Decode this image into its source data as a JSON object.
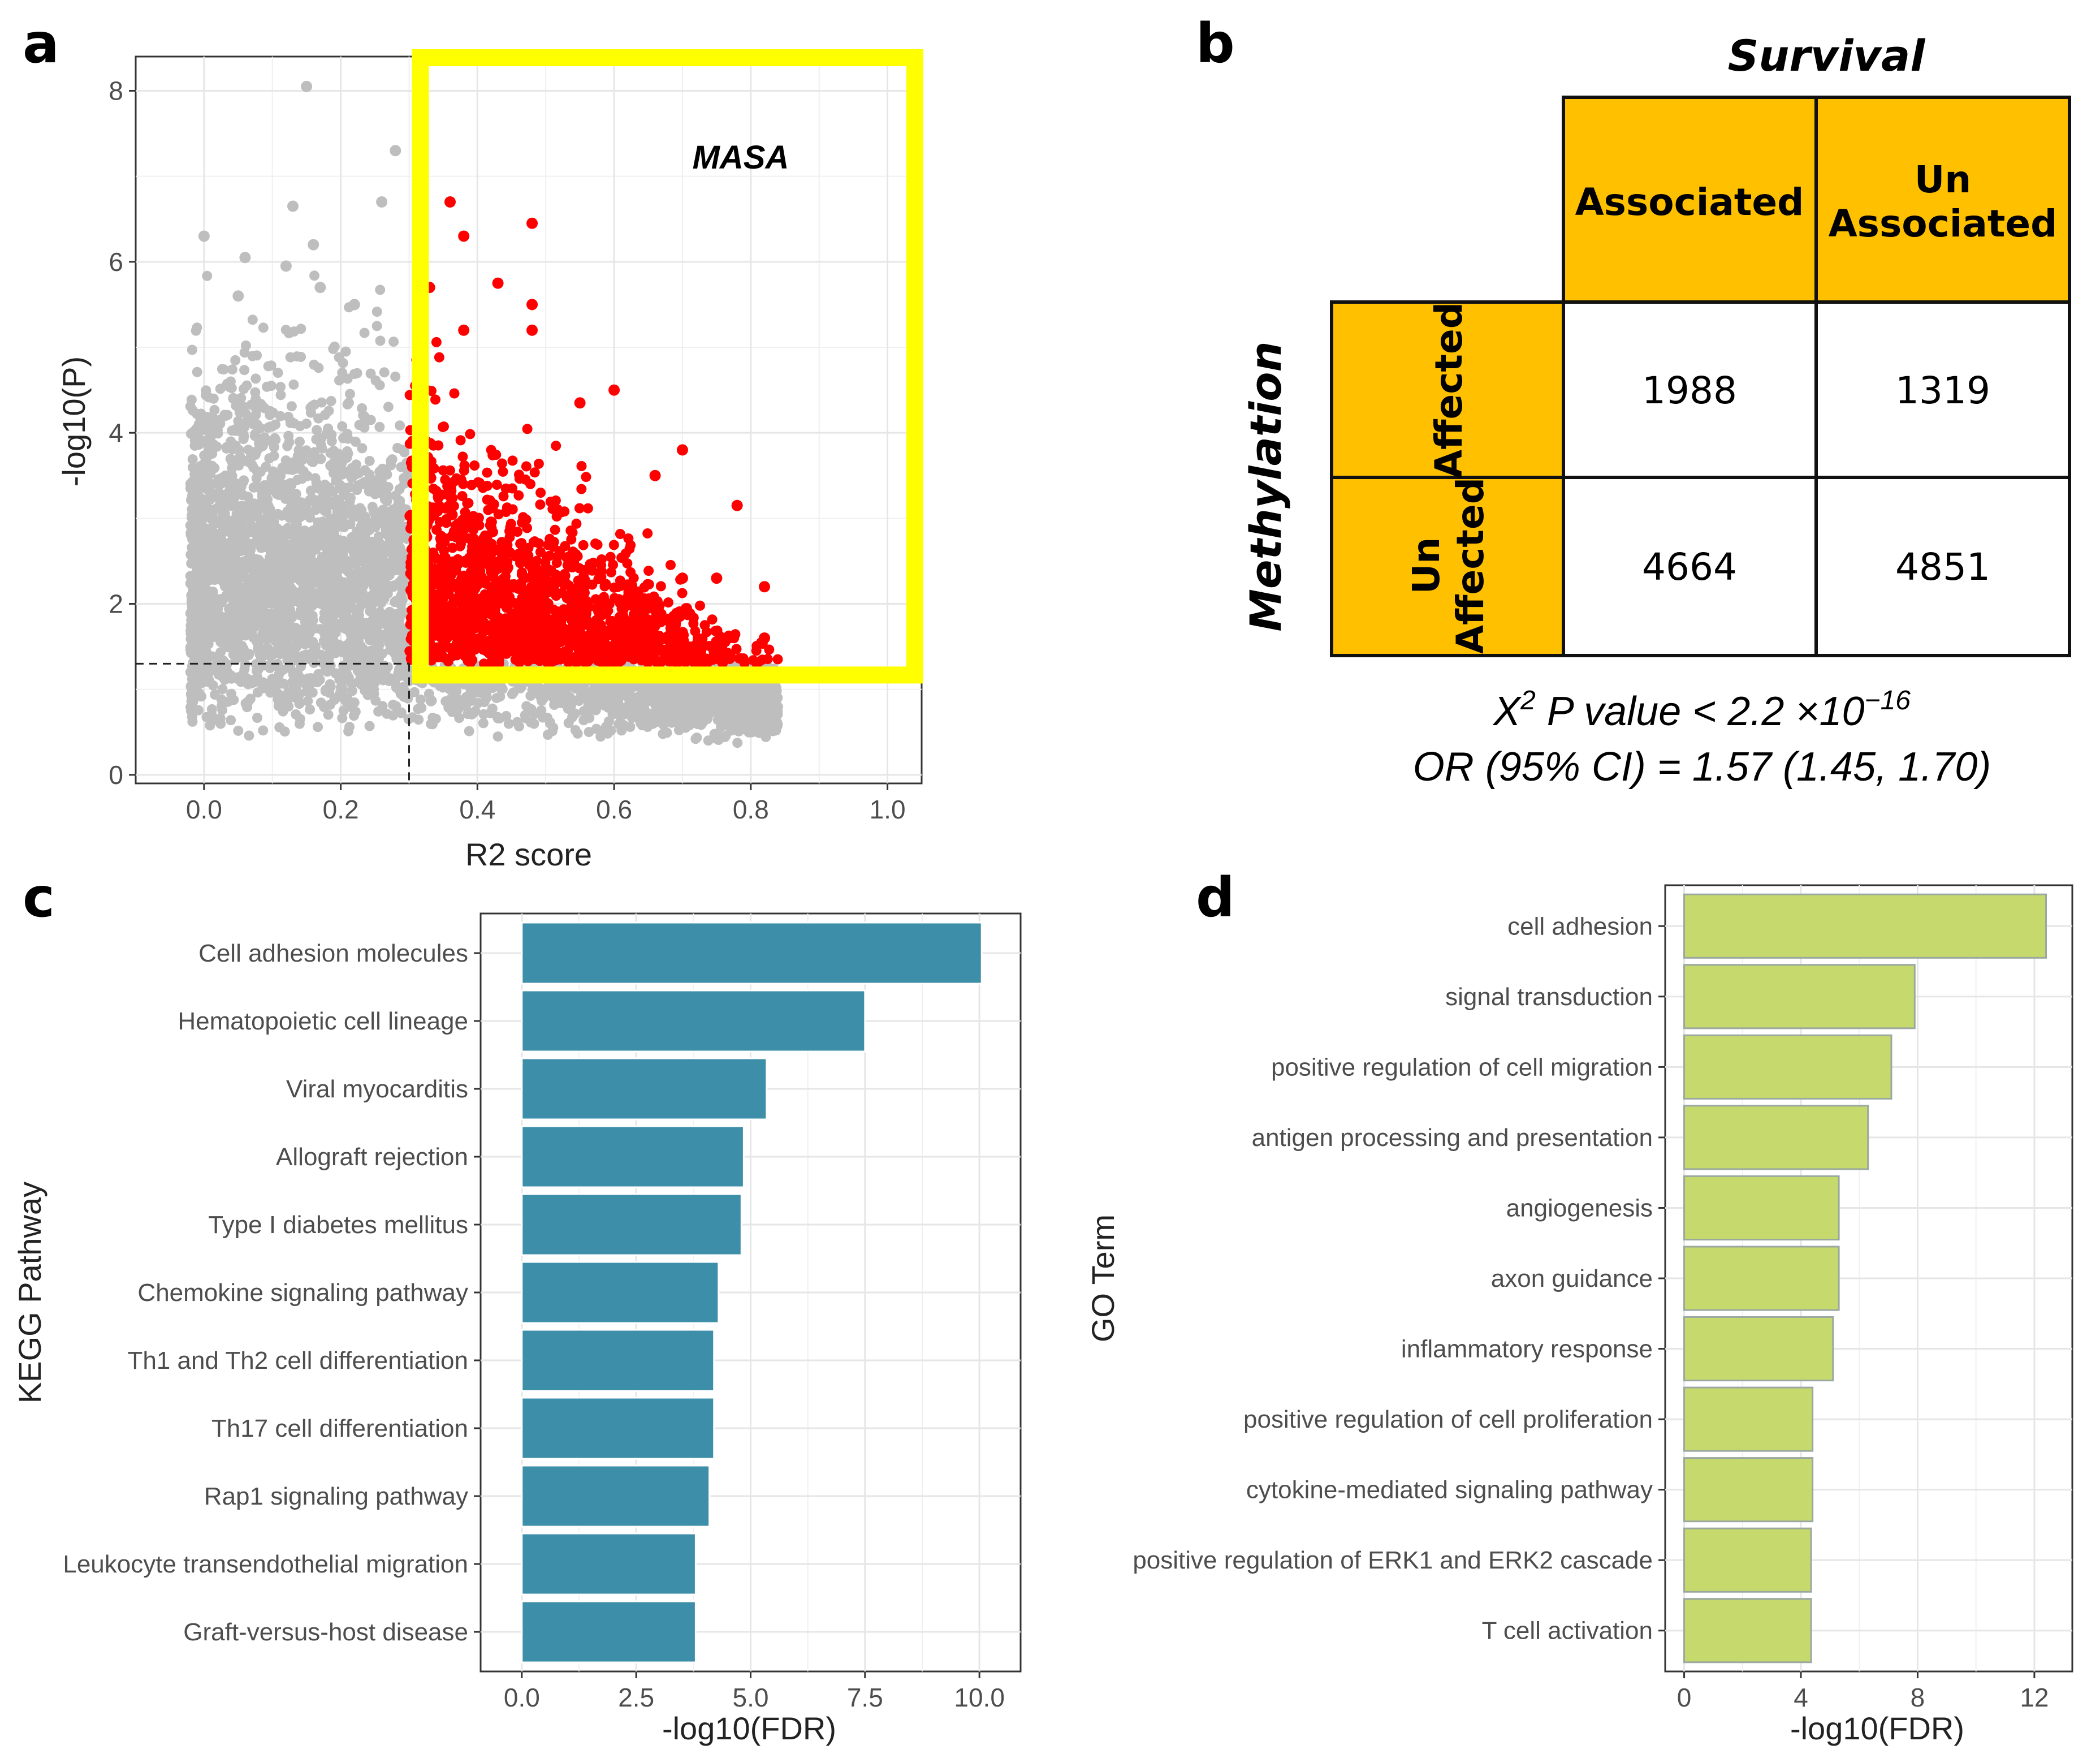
{
  "panels": {
    "a": "a",
    "b": "b",
    "c": "c",
    "d": "d"
  },
  "colors": {
    "grey_points": "#bebebe",
    "red_points": "#ff0000",
    "highlight_box": "#ffff00",
    "kegg_bar": "#3d8ea8",
    "go_bar": "#c6d96c",
    "table_orange": "#ffc000"
  },
  "chart_data": [
    {
      "id": "a",
      "type": "scatter",
      "title": "",
      "xlabel": "R2 score",
      "ylabel": "-log10(P)",
      "xlim": [
        -0.1,
        1.05
      ],
      "ylim": [
        -0.1,
        8.4
      ],
      "xticks": [
        0.0,
        0.2,
        0.4,
        0.6,
        0.8,
        1.0
      ],
      "xtick_labels": [
        "0.0",
        "0.2",
        "0.4",
        "0.6",
        "0.8",
        "1.0"
      ],
      "yticks": [
        0,
        2,
        4,
        6,
        8
      ],
      "ytick_labels": [
        "0",
        "2",
        "4",
        "6",
        "8"
      ],
      "thresholds": {
        "x": 0.3,
        "y": 1.3
      },
      "annotation": "MASA",
      "highlight_region": {
        "x_min": 0.3,
        "x_max": 1.05,
        "y_min": 1.3,
        "y_max": 8.4
      },
      "grid": true,
      "notable_points": [
        {
          "x": 0.15,
          "y": 8.05
        },
        {
          "x": 0.28,
          "y": 7.3
        },
        {
          "x": 0.13,
          "y": 6.65
        },
        {
          "x": 0.26,
          "y": 6.7
        },
        {
          "x": 0.0,
          "y": 6.3
        },
        {
          "x": 0.06,
          "y": 6.05
        },
        {
          "x": 0.12,
          "y": 5.95
        },
        {
          "x": 0.16,
          "y": 6.2
        },
        {
          "x": 0.05,
          "y": 5.6
        },
        {
          "x": 0.17,
          "y": 5.7
        },
        {
          "x": 0.22,
          "y": 5.5
        },
        {
          "x": 0.36,
          "y": 6.7
        },
        {
          "x": 0.38,
          "y": 6.3
        },
        {
          "x": 0.48,
          "y": 6.45
        },
        {
          "x": 0.43,
          "y": 5.75
        },
        {
          "x": 0.48,
          "y": 5.5
        },
        {
          "x": 0.48,
          "y": 5.2
        },
        {
          "x": 0.33,
          "y": 5.7
        },
        {
          "x": 0.38,
          "y": 5.2
        },
        {
          "x": 0.55,
          "y": 4.35
        },
        {
          "x": 0.6,
          "y": 4.5
        },
        {
          "x": 0.7,
          "y": 3.8
        },
        {
          "x": 0.66,
          "y": 3.5
        },
        {
          "x": 0.78,
          "y": 3.15
        },
        {
          "x": 0.82,
          "y": 2.2
        },
        {
          "x": 0.82,
          "y": 1.6
        },
        {
          "x": 0.75,
          "y": 2.3
        },
        {
          "x": 0.7,
          "y": 2.3
        }
      ]
    },
    {
      "id": "b",
      "type": "table",
      "column_group": "Survival",
      "row_group": "Methylation",
      "col_headers": [
        "Associated",
        "Un\nAssociated"
      ],
      "row_headers": [
        "Affected",
        "Un\nAffected"
      ],
      "cells": [
        [
          "1988",
          "1319"
        ],
        [
          "4664",
          "4851"
        ]
      ],
      "stat_line1": {
        "prefix": "Χ",
        "sup": "2",
        "mid": " P value < 2.2 ×10",
        "exp": "−16"
      },
      "stat_line2": "OR (95% CI) = 1.57 (1.45, 1.70)"
    },
    {
      "id": "c",
      "type": "bar",
      "orientation": "horizontal",
      "xlabel": "-log10(FDR)",
      "ylabel": "KEGG Pathway",
      "categories": [
        "Cell adhesion molecules",
        "Hematopoietic cell lineage",
        "Viral myocarditis",
        "Allograft rejection",
        "Type I diabetes mellitus",
        "Chemokine signaling pathway",
        "Th1 and Th2 cell differentiation",
        "Th17 cell differentiation",
        "Rap1 signaling pathway",
        "Leukocyte transendothelial migration",
        "Graft-versus-host disease"
      ],
      "values": [
        10.05,
        7.5,
        5.35,
        4.85,
        4.8,
        4.3,
        4.2,
        4.2,
        4.1,
        3.8,
        3.8
      ],
      "xlim": [
        -0.9,
        10.9
      ],
      "xticks": [
        0.0,
        2.5,
        5.0,
        7.5,
        10.0
      ],
      "xtick_labels": [
        "0.0",
        "2.5",
        "5.0",
        "7.5",
        "10.0"
      ],
      "grid": true
    },
    {
      "id": "d",
      "type": "bar",
      "orientation": "horizontal",
      "xlabel": "-log10(FDR)",
      "ylabel": "GO Term",
      "categories": [
        "cell adhesion",
        "signal transduction",
        "positive regulation of cell migration",
        "antigen processing and presentation",
        "angiogenesis",
        "axon guidance",
        "inflammatory response",
        "positive regulation of cell proliferation",
        "cytokine-mediated signaling pathway",
        "positive regulation of ERK1 and ERK2 cascade",
        "T cell activation"
      ],
      "values": [
        12.4,
        7.9,
        7.1,
        6.3,
        5.3,
        5.3,
        5.1,
        4.4,
        4.4,
        4.35,
        4.35
      ],
      "xlim": [
        -0.65,
        13.3
      ],
      "xticks": [
        0,
        4,
        8,
        12
      ],
      "xtick_labels": [
        "0",
        "4",
        "8",
        "12"
      ],
      "grid": true
    }
  ]
}
